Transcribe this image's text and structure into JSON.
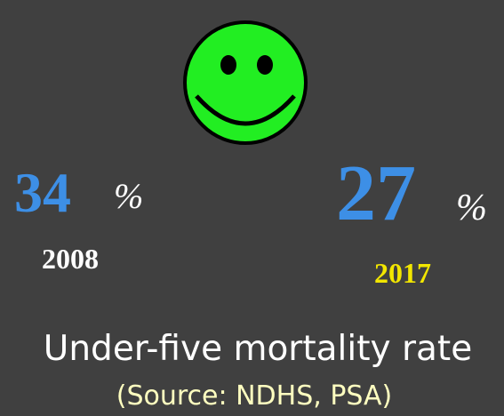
{
  "stats": [
    {
      "value": 34,
      "unit": "%",
      "year": "2008"
    },
    {
      "value": 27,
      "unit": "%",
      "year": "2017"
    }
  ],
  "caption": "Under-five mortality rate",
  "source": "(Source: NDHS, PSA)"
}
